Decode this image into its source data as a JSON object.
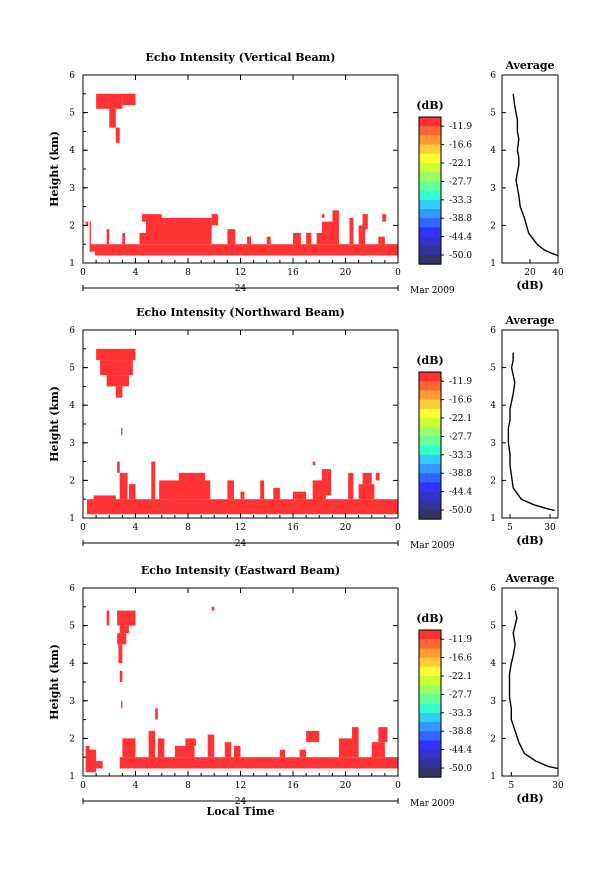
{
  "colorbar": {
    "unit": "(dB)",
    "labels": [
      "-11.9",
      "-16.6",
      "-22.1",
      "-27.7",
      "-33.3",
      "-38.8",
      "-44.4",
      "-50.0"
    ],
    "colors": [
      "#ff3333",
      "#ff6633",
      "#ff9933",
      "#ffcc33",
      "#ffff33",
      "#ccff33",
      "#99ff66",
      "#66ff99",
      "#33ffcc",
      "#33ccff",
      "#3399ff",
      "#3366ff",
      "#3333ff",
      "#3333cc",
      "#333399",
      "#333366"
    ]
  },
  "xaxis": {
    "xlabel": "Local Time",
    "date_label": "24",
    "month_label": "Mar 2009",
    "ticks": [
      "0",
      "4",
      "8",
      "12",
      "16",
      "20",
      "0"
    ]
  },
  "avg_title": "Average",
  "avg_xlabel": "(dB)",
  "chart_data": [
    {
      "type": "heatmap",
      "title": "Echo Intensity (Vertical Beam)",
      "ylabel": "Height (km)",
      "xlabel": "Local Time",
      "xlim": [
        0,
        24
      ],
      "ylim": [
        1,
        6
      ],
      "yticks": [
        "1",
        "2",
        "3",
        "4",
        "5",
        "6"
      ],
      "color_label": "(dB)",
      "cells": [
        [
          1.0,
          5.1,
          3.0,
          5.5
        ],
        [
          2.0,
          4.6,
          2.5,
          5.1
        ],
        [
          2.5,
          4.2,
          2.8,
          4.6
        ],
        [
          3.0,
          5.2,
          4.0,
          5.5
        ],
        [
          0.2,
          2.0,
          0.4,
          2.1
        ],
        [
          0.5,
          1.3,
          0.9,
          1.5
        ],
        [
          0.5,
          1.5,
          0.6,
          2.1
        ],
        [
          0.9,
          1.2,
          24,
          1.5
        ],
        [
          1.8,
          1.5,
          2.0,
          1.9
        ],
        [
          3.0,
          1.5,
          3.2,
          1.8
        ],
        [
          4.3,
          1.5,
          4.8,
          1.8
        ],
        [
          4.5,
          2.1,
          6.0,
          2.3
        ],
        [
          4.8,
          1.5,
          9.8,
          2.2
        ],
        [
          6.5,
          1.8,
          9.5,
          2.0
        ],
        [
          7.0,
          2.0,
          8.3,
          2.2
        ],
        [
          9.8,
          2.0,
          10.3,
          2.3
        ],
        [
          11.0,
          1.5,
          11.6,
          1.9
        ],
        [
          12.5,
          1.5,
          12.8,
          1.7
        ],
        [
          14.0,
          1.5,
          14.3,
          1.7
        ],
        [
          16.0,
          1.5,
          16.6,
          1.8
        ],
        [
          17.0,
          1.5,
          17.4,
          1.8
        ],
        [
          17.8,
          1.5,
          19.3,
          1.8
        ],
        [
          18.2,
          1.8,
          19.2,
          2.1
        ],
        [
          19.0,
          1.5,
          19.5,
          2.4
        ],
        [
          20.3,
          1.5,
          20.6,
          2.2
        ],
        [
          21.0,
          1.5,
          21.5,
          2.0
        ],
        [
          21.3,
          1.9,
          21.7,
          2.3
        ],
        [
          22.5,
          1.5,
          23.0,
          1.7
        ],
        [
          22.8,
          2.1,
          23.1,
          2.3
        ],
        [
          18.2,
          2.2,
          18.4,
          2.3
        ]
      ],
      "avg": {
        "xlim": [
          0,
          40
        ],
        "xticks": [
          "20",
          "40"
        ],
        "x": [
          8,
          9,
          10,
          11,
          11,
          12,
          11,
          12,
          12,
          11,
          10,
          11,
          12,
          13,
          16,
          19,
          25,
          30,
          36,
          40
        ],
        "y": [
          5.5,
          5.2,
          5.0,
          4.8,
          4.5,
          4.3,
          4.0,
          3.8,
          3.6,
          3.4,
          3.2,
          3.0,
          2.8,
          2.5,
          2.2,
          1.8,
          1.5,
          1.35,
          1.25,
          1.2
        ]
      }
    },
    {
      "type": "heatmap",
      "title": "Echo Intensity (Northward Beam)",
      "ylabel": "Height (km)",
      "xlabel": "Local Time",
      "xlim": [
        0,
        24
      ],
      "ylim": [
        1,
        6
      ],
      "yticks": [
        "1",
        "2",
        "3",
        "4",
        "5",
        "6"
      ],
      "color_label": "(dB)",
      "cells": [
        [
          1.0,
          5.2,
          4.0,
          5.5
        ],
        [
          1.3,
          4.8,
          3.8,
          5.2
        ],
        [
          1.8,
          4.5,
          3.5,
          4.8
        ],
        [
          2.5,
          4.2,
          3.0,
          4.5
        ],
        [
          2.9,
          3.2,
          3.0,
          3.4
        ],
        [
          2.6,
          2.2,
          2.8,
          2.5
        ],
        [
          0.3,
          1.1,
          24,
          1.5
        ],
        [
          0.8,
          1.4,
          2.5,
          1.6
        ],
        [
          2.8,
          1.5,
          3.4,
          2.2
        ],
        [
          3.5,
          1.5,
          4.0,
          1.9
        ],
        [
          5.2,
          1.5,
          5.5,
          2.5
        ],
        [
          5.8,
          1.5,
          9.7,
          2.0
        ],
        [
          7.3,
          1.8,
          9.3,
          2.2
        ],
        [
          11.0,
          1.5,
          11.5,
          2.0
        ],
        [
          12.0,
          1.5,
          12.3,
          1.7
        ],
        [
          13.5,
          1.5,
          13.8,
          2.0
        ],
        [
          14.5,
          1.5,
          15.0,
          1.8
        ],
        [
          16.0,
          1.5,
          17.0,
          1.7
        ],
        [
          17.5,
          1.5,
          18.5,
          2.0
        ],
        [
          18.2,
          1.6,
          18.9,
          2.3
        ],
        [
          20.2,
          1.5,
          20.6,
          2.2
        ],
        [
          21.0,
          1.5,
          22.2,
          1.9
        ],
        [
          21.3,
          1.9,
          22.0,
          2.2
        ],
        [
          22.3,
          2.0,
          22.6,
          2.2
        ],
        [
          17.5,
          2.4,
          17.7,
          2.5
        ]
      ],
      "avg": {
        "xlim": [
          0,
          35
        ],
        "xticks": [
          "5",
          "30"
        ],
        "x": [
          7,
          7,
          6,
          7,
          8,
          7,
          6,
          5,
          5,
          4,
          4,
          4,
          5,
          5,
          6,
          7,
          12,
          20,
          28,
          33
        ],
        "y": [
          5.4,
          5.2,
          5.0,
          4.8,
          4.6,
          4.3,
          4.1,
          3.9,
          3.6,
          3.4,
          3.2,
          3.0,
          2.7,
          2.4,
          2.1,
          1.8,
          1.5,
          1.35,
          1.25,
          1.2
        ]
      }
    },
    {
      "type": "heatmap",
      "title": "Echo Intensity (Eastward Beam)",
      "ylabel": "Height (km)",
      "xlabel": "Local Time",
      "xlim": [
        0,
        24
      ],
      "ylim": [
        1,
        6
      ],
      "yticks": [
        "1",
        "2",
        "3",
        "4",
        "5",
        "6"
      ],
      "color_label": "(dB)",
      "cells": [
        [
          1.8,
          5.0,
          2.0,
          5.4
        ],
        [
          2.6,
          5.0,
          4.0,
          5.4
        ],
        [
          2.8,
          4.8,
          3.5,
          5.0
        ],
        [
          2.6,
          4.5,
          3.3,
          4.8
        ],
        [
          2.7,
          4.0,
          3.0,
          4.5
        ],
        [
          2.8,
          3.5,
          3.0,
          3.8
        ],
        [
          2.9,
          2.8,
          3.0,
          3.0
        ],
        [
          9.8,
          5.4,
          10.0,
          5.5
        ],
        [
          0.2,
          1.1,
          1.0,
          1.7
        ],
        [
          0.2,
          1.6,
          0.5,
          1.8
        ],
        [
          1.0,
          1.2,
          1.5,
          1.4
        ],
        [
          2.8,
          1.2,
          24,
          1.5
        ],
        [
          3.0,
          1.5,
          4.0,
          2.0
        ],
        [
          5.0,
          1.5,
          5.5,
          2.2
        ],
        [
          5.7,
          1.5,
          6.2,
          2.0
        ],
        [
          7.0,
          1.5,
          8.5,
          1.8
        ],
        [
          7.8,
          1.8,
          8.6,
          2.0
        ],
        [
          9.5,
          1.5,
          10.0,
          2.1
        ],
        [
          10.8,
          1.5,
          11.3,
          1.9
        ],
        [
          11.5,
          1.5,
          12.0,
          1.8
        ],
        [
          16.5,
          1.5,
          17.0,
          1.7
        ],
        [
          19.5,
          1.5,
          20.5,
          2.0
        ],
        [
          20.5,
          1.5,
          21.0,
          2.3
        ],
        [
          22.0,
          1.5,
          23.0,
          1.9
        ],
        [
          22.5,
          1.9,
          23.2,
          2.3
        ],
        [
          5.5,
          2.5,
          5.7,
          2.8
        ],
        [
          17.0,
          1.9,
          18.0,
          2.2
        ],
        [
          15.0,
          1.5,
          15.4,
          1.7
        ]
      ],
      "avg": {
        "xlim": [
          0,
          30
        ],
        "xticks": [
          "5",
          "30"
        ],
        "x": [
          7,
          8,
          7,
          6,
          7,
          6,
          5,
          4,
          4,
          4,
          5,
          5,
          7,
          9,
          12,
          18,
          25,
          30
        ],
        "y": [
          5.4,
          5.2,
          5.0,
          4.8,
          4.5,
          4.2,
          4.0,
          3.7,
          3.4,
          3.1,
          2.8,
          2.5,
          2.2,
          1.9,
          1.6,
          1.4,
          1.25,
          1.2
        ]
      }
    }
  ]
}
